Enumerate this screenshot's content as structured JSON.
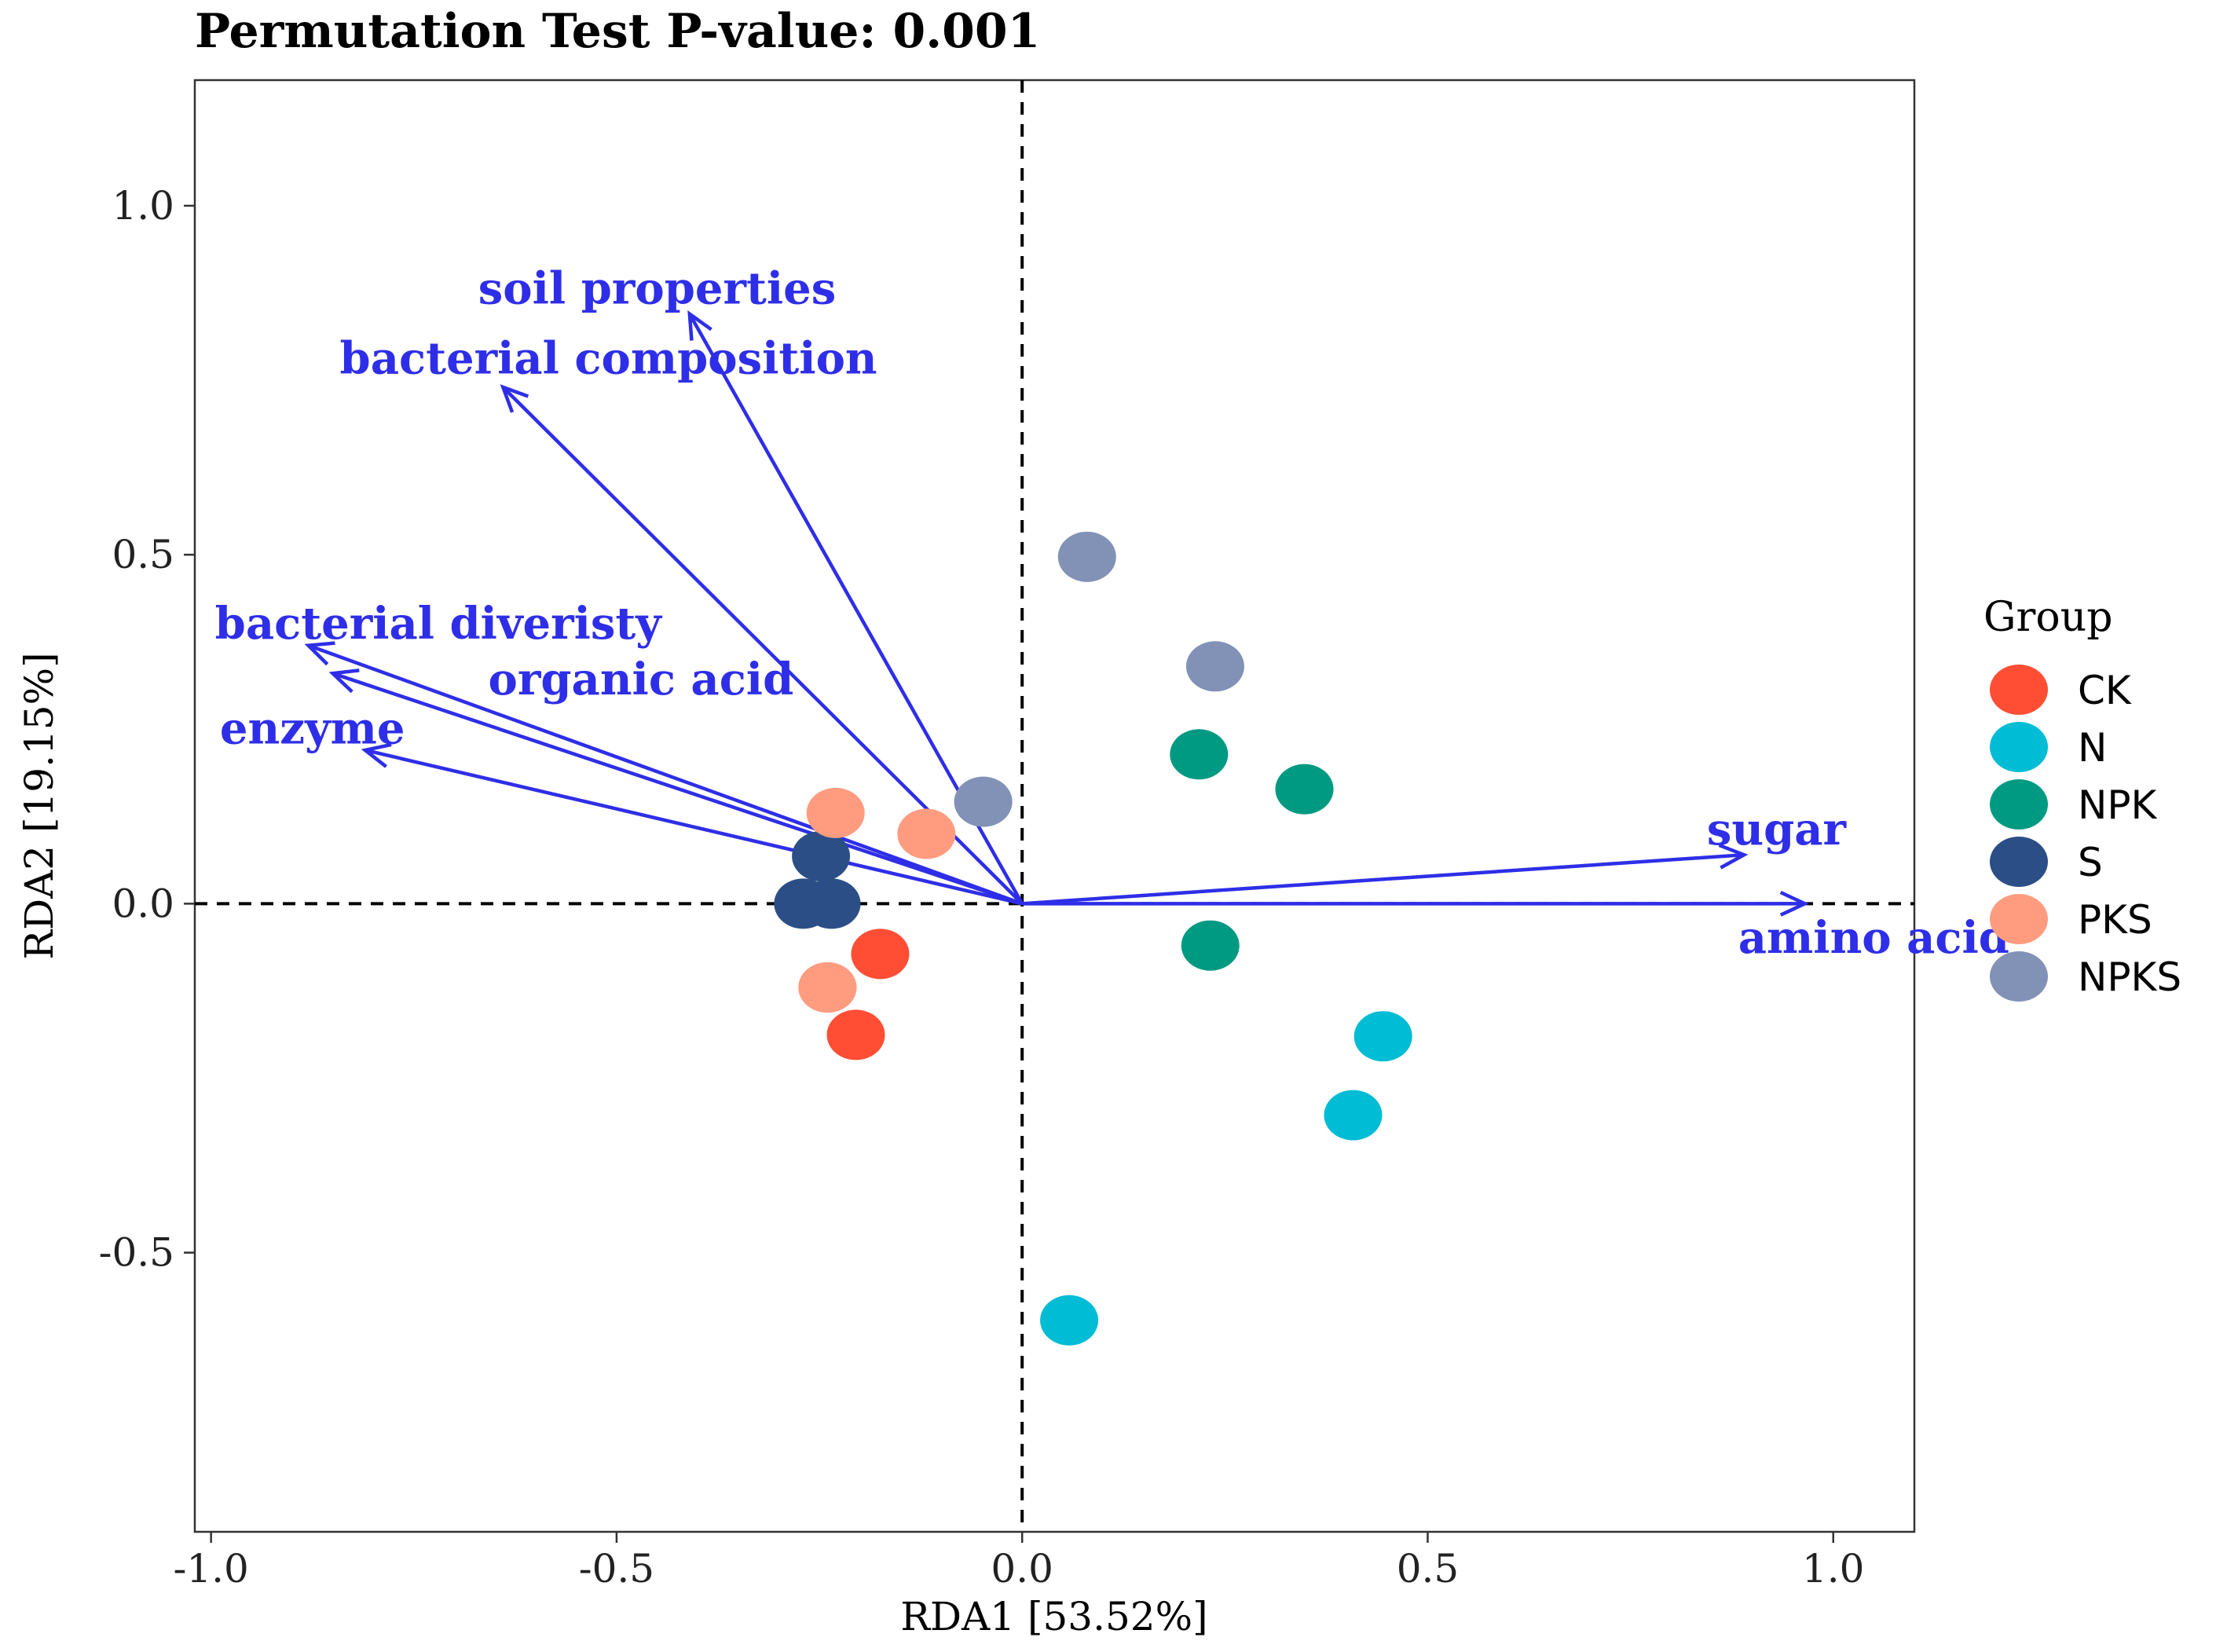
{
  "chart_data": {
    "type": "scatter",
    "title": "Permutation Test P-value: 0.001",
    "xlabel": "RDA1 [53.52%]",
    "ylabel": "RDA2 [19.15%]",
    "xlim": [
      -1.02,
      1.1
    ],
    "ylim": [
      -0.9,
      1.18
    ],
    "xticks": [
      -1.0,
      -0.5,
      0.0,
      0.5,
      1.0
    ],
    "xtick_labels": [
      "-1.0",
      "-0.5",
      "0.0",
      "0.5",
      "1.0"
    ],
    "yticks": [
      -0.5,
      0.0,
      0.5,
      1.0
    ],
    "ytick_labels": [
      "-0.5",
      "0.0",
      "0.5",
      "1.0"
    ],
    "grid": false,
    "reference_lines": {
      "x": 0,
      "y": 0,
      "style": "dashed"
    },
    "legend": {
      "title": "Group",
      "position": "right",
      "entries": [
        {
          "label": "CK",
          "color": "#FF4E34"
        },
        {
          "label": "N",
          "color": "#00BCD4"
        },
        {
          "label": "NPK",
          "color": "#009A82"
        },
        {
          "label": "S",
          "color": "#2B4E87"
        },
        {
          "label": "PKS",
          "color": "#FF9C80"
        },
        {
          "label": "NPKS",
          "color": "#8292B6"
        }
      ]
    },
    "series": [
      {
        "name": "CK",
        "color": "#FF4E34",
        "points": [
          [
            -0.175,
            -0.072
          ],
          [
            -0.205,
            -0.188
          ],
          [
            -0.24,
            -0.12
          ]
        ]
      },
      {
        "name": "N",
        "color": "#00BCD4",
        "points": [
          [
            0.445,
            -0.19
          ],
          [
            0.408,
            -0.303
          ],
          [
            0.058,
            -0.597
          ]
        ]
      },
      {
        "name": "NPK",
        "color": "#009A82",
        "points": [
          [
            0.218,
            0.214
          ],
          [
            0.348,
            0.164
          ],
          [
            0.232,
            -0.06
          ]
        ]
      },
      {
        "name": "S",
        "color": "#2B4E87",
        "points": [
          [
            -0.248,
            0.068
          ],
          [
            -0.27,
            0.0
          ],
          [
            -0.235,
            0.0
          ]
        ]
      },
      {
        "name": "PKS",
        "color": "#FF9C80",
        "points": [
          [
            -0.23,
            0.13
          ],
          [
            -0.118,
            0.1
          ],
          [
            -0.24,
            -0.12
          ]
        ]
      },
      {
        "name": "NPKS",
        "color": "#8292B6",
        "points": [
          [
            0.08,
            0.497
          ],
          [
            0.238,
            0.34
          ],
          [
            -0.048,
            0.146
          ]
        ]
      }
    ],
    "vectors": {
      "color": "#2E2EE8",
      "items": [
        {
          "label": "soil properties",
          "end": [
            -0.41,
            0.845
          ],
          "label_pos": [
            -0.45,
            0.88
          ]
        },
        {
          "label": "bacterial composition",
          "end": [
            -0.64,
            0.74
          ],
          "label_pos": [
            -0.51,
            0.78
          ]
        },
        {
          "label": "bacterial diveristy",
          "end": [
            -0.88,
            0.37
          ],
          "label_pos": [
            -0.72,
            0.4
          ]
        },
        {
          "label": "organic acid",
          "end": [
            -0.85,
            0.33
          ],
          "label_pos": [
            -0.47,
            0.32
          ]
        },
        {
          "label": "enzyme",
          "end": [
            -0.81,
            0.22
          ],
          "label_pos": [
            -0.875,
            0.25
          ]
        },
        {
          "label": "sugar",
          "end": [
            0.89,
            0.07
          ],
          "label_pos": [
            0.93,
            0.105
          ]
        },
        {
          "label": "amino acid",
          "end": [
            0.965,
            0.0
          ],
          "label_pos": [
            1.05,
            -0.05
          ]
        }
      ]
    }
  }
}
